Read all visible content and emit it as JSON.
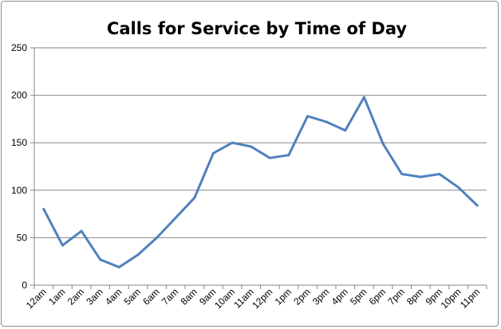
{
  "chart_data": {
    "type": "line",
    "title": "Calls for Service by Time of Day",
    "xlabel": "",
    "ylabel": "",
    "categories": [
      "12am",
      "1am",
      "2am",
      "3am",
      "4am",
      "5am",
      "6am",
      "7am",
      "8am",
      "9am",
      "10am",
      "11am",
      "12pm",
      "1pm",
      "2pm",
      "3pm",
      "4pm",
      "5pm",
      "6pm",
      "7pm",
      "8pm",
      "9pm",
      "10pm",
      "11pm"
    ],
    "series": [
      {
        "values": [
          80,
          42,
          57,
          27,
          19,
          32,
          50,
          71,
          92,
          139,
          150,
          146,
          134,
          137,
          178,
          172,
          163,
          198,
          149,
          117,
          114,
          117,
          103,
          84
        ]
      }
    ],
    "ylim": [
      0,
      250
    ],
    "yticks": [
      "0",
      "50",
      "100",
      "150",
      "200",
      "250"
    ],
    "grid": true,
    "legend": "none",
    "line_color": "#4f81bd"
  }
}
